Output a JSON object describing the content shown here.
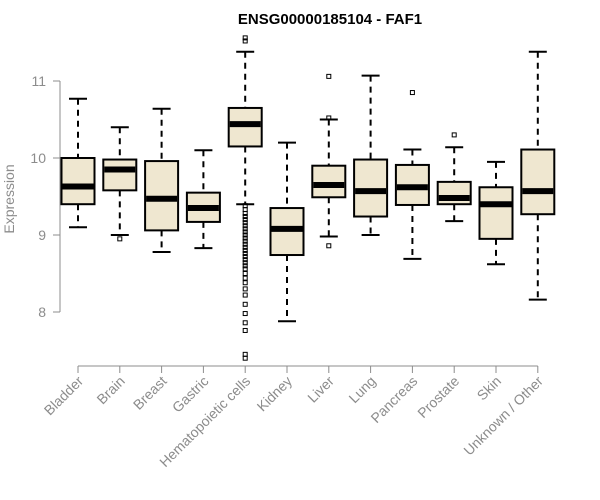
{
  "chart_data": {
    "type": "boxplot",
    "title": "ENSG00000185104 - FAF1",
    "xlabel": "",
    "ylabel": "Expression",
    "ylim": [
      7.3,
      11.6
    ],
    "yticks": [
      8,
      9,
      10,
      11
    ],
    "yticklabels": [
      "8",
      "9",
      "10",
      "11"
    ],
    "grid": false,
    "colors": {
      "box_fill": "#efe7d0",
      "stroke": "#000000",
      "axis": "#8c8c8c"
    },
    "categories": [
      "Bladder",
      "Brain",
      "Breast",
      "Gastric",
      "Hematopoietic cells",
      "Kidney",
      "Liver",
      "Lung",
      "Pancreas",
      "Prostate",
      "Skin",
      "Unknown / Other"
    ],
    "boxes": [
      {
        "label": "Bladder",
        "whisker_low": 9.1,
        "q1": 9.4,
        "median": 9.63,
        "q3": 10.0,
        "whisker_high": 10.77,
        "outliers": []
      },
      {
        "label": "Brain",
        "whisker_low": 9.0,
        "q1": 9.58,
        "median": 9.85,
        "q3": 9.98,
        "whisker_high": 10.4,
        "outliers": [
          8.95
        ]
      },
      {
        "label": "Breast",
        "whisker_low": 8.78,
        "q1": 9.06,
        "median": 9.47,
        "q3": 9.96,
        "whisker_high": 10.64,
        "outliers": []
      },
      {
        "label": "Gastric",
        "whisker_low": 8.83,
        "q1": 9.17,
        "median": 9.35,
        "q3": 9.55,
        "whisker_high": 10.1,
        "outliers": []
      },
      {
        "label": "Hematopoietic cells",
        "whisker_low": 9.4,
        "q1": 10.15,
        "median": 10.44,
        "q3": 10.65,
        "whisker_high": 11.38,
        "outliers": [
          11.52,
          11.56,
          9.38,
          9.33,
          9.28,
          9.24,
          9.2,
          9.16,
          9.12,
          9.08,
          9.04,
          9.0,
          8.96,
          8.92,
          8.88,
          8.84,
          8.8,
          8.76,
          8.72,
          8.68,
          8.64,
          8.6,
          8.56,
          8.5,
          8.44,
          8.38,
          8.3,
          8.22,
          8.1,
          7.98,
          7.86,
          7.76,
          7.45,
          7.4
        ]
      },
      {
        "label": "Kidney",
        "whisker_low": 7.88,
        "q1": 8.74,
        "median": 9.08,
        "q3": 9.35,
        "whisker_high": 10.2,
        "outliers": []
      },
      {
        "label": "Liver",
        "whisker_low": 8.98,
        "q1": 9.49,
        "median": 9.65,
        "q3": 9.9,
        "whisker_high": 10.5,
        "outliers": [
          11.06,
          10.52,
          8.86
        ]
      },
      {
        "label": "Lung",
        "whisker_low": 9.0,
        "q1": 9.24,
        "median": 9.57,
        "q3": 9.98,
        "whisker_high": 11.07,
        "outliers": []
      },
      {
        "label": "Pancreas",
        "whisker_low": 8.69,
        "q1": 9.39,
        "median": 9.62,
        "q3": 9.91,
        "whisker_high": 10.11,
        "outliers": [
          10.85
        ]
      },
      {
        "label": "Prostate",
        "whisker_low": 9.18,
        "q1": 9.4,
        "median": 9.48,
        "q3": 9.69,
        "whisker_high": 10.14,
        "outliers": [
          10.3
        ]
      },
      {
        "label": "Skin",
        "whisker_low": 8.62,
        "q1": 8.95,
        "median": 9.4,
        "q3": 9.62,
        "whisker_high": 9.95,
        "outliers": []
      },
      {
        "label": "Unknown / Other",
        "whisker_low": 8.16,
        "q1": 9.27,
        "median": 9.57,
        "q3": 10.11,
        "whisker_high": 11.38,
        "outliers": []
      }
    ]
  }
}
